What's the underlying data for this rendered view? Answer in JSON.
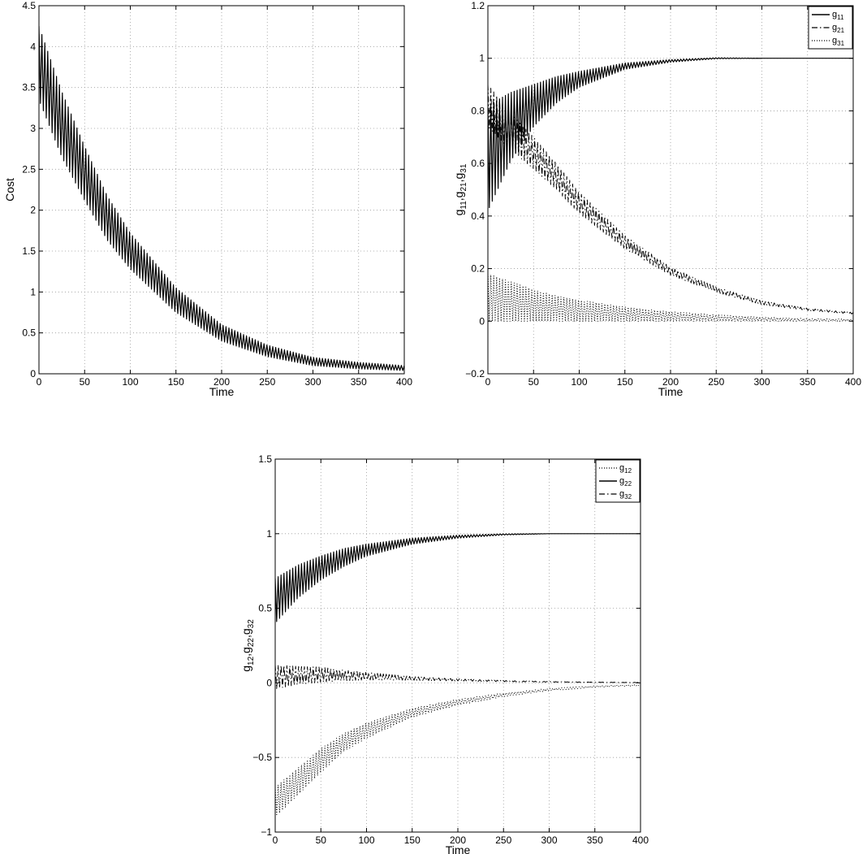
{
  "chart_data": [
    {
      "type": "line",
      "xlabel": "Time",
      "ylabel": "Cost",
      "xlim": [
        0,
        400
      ],
      "ylim": [
        0,
        4.5
      ],
      "xticks": [
        "0",
        "50",
        "100",
        "150",
        "200",
        "250",
        "300",
        "350",
        "400"
      ],
      "yticks": [
        "0",
        "0.5",
        "1",
        "1.5",
        "2",
        "2.5",
        "3",
        "3.5",
        "4",
        "4.5"
      ],
      "grid": true,
      "legend": null,
      "series": [
        {
          "style": "solid",
          "color": "#000000",
          "oscillating": true,
          "x": [
            0,
            25,
            50,
            75,
            100,
            150,
            200,
            250,
            300,
            350,
            400
          ],
          "center": [
            3.8,
            3.05,
            2.45,
            1.9,
            1.5,
            0.9,
            0.5,
            0.28,
            0.15,
            0.1,
            0.07
          ],
          "amplitude": [
            0.45,
            0.4,
            0.33,
            0.27,
            0.22,
            0.15,
            0.1,
            0.07,
            0.05,
            0.04,
            0.03
          ]
        }
      ]
    },
    {
      "type": "line",
      "xlabel": "Time",
      "ylabel_main": "g",
      "ylabel_subs": [
        "11",
        "21",
        "31"
      ],
      "xlim": [
        0,
        400
      ],
      "ylim": [
        -0.2,
        1.2
      ],
      "xticks": [
        "0",
        "50",
        "100",
        "150",
        "200",
        "250",
        "300",
        "350",
        "400"
      ],
      "yticks": [
        "−0.2",
        "0",
        "0.2",
        "0.4",
        "0.6",
        "0.8",
        "1",
        "1.2"
      ],
      "grid": true,
      "legend": "top-right",
      "series": [
        {
          "legend_main": "g",
          "legend_sub": "11",
          "style": "solid",
          "color": "#000000",
          "oscillating": true,
          "x": [
            0,
            25,
            50,
            75,
            100,
            150,
            200,
            250,
            300,
            350,
            400
          ],
          "center": [
            0.62,
            0.74,
            0.82,
            0.88,
            0.92,
            0.97,
            0.99,
            1.0,
            1.0,
            1.0,
            1.0
          ],
          "amplitude": [
            0.2,
            0.13,
            0.08,
            0.05,
            0.03,
            0.012,
            0.005,
            0.002,
            0.0,
            0.0,
            0.0
          ]
        },
        {
          "legend_main": "g",
          "legend_sub": "21",
          "style": "dashdot",
          "color": "#000000",
          "oscillating": true,
          "x": [
            0,
            25,
            50,
            75,
            100,
            150,
            200,
            250,
            300,
            350,
            400
          ],
          "center": [
            0.82,
            0.72,
            0.64,
            0.55,
            0.45,
            0.3,
            0.19,
            0.12,
            0.07,
            0.045,
            0.03
          ],
          "amplitude": [
            0.08,
            0.07,
            0.06,
            0.05,
            0.04,
            0.025,
            0.015,
            0.01,
            0.007,
            0.004,
            0.003
          ]
        },
        {
          "legend_main": "g",
          "legend_sub": "31",
          "style": "dotted",
          "color": "#000000",
          "oscillating": true,
          "x": [
            0,
            25,
            50,
            75,
            100,
            150,
            200,
            250,
            300,
            350,
            400
          ],
          "center": [
            0.09,
            0.075,
            0.06,
            0.048,
            0.04,
            0.027,
            0.018,
            0.012,
            0.008,
            0.005,
            0.004
          ],
          "amplitude": [
            0.09,
            0.075,
            0.06,
            0.048,
            0.04,
            0.027,
            0.018,
            0.012,
            0.008,
            0.005,
            0.004
          ]
        }
      ]
    },
    {
      "type": "line",
      "xlabel": "Time",
      "ylabel_main": "g",
      "ylabel_subs": [
        "12",
        "22",
        "32"
      ],
      "xlim": [
        0,
        400
      ],
      "ylim": [
        -1,
        1.5
      ],
      "xticks": [
        "0",
        "50",
        "100",
        "150",
        "200",
        "250",
        "300",
        "350",
        "400"
      ],
      "yticks": [
        "−1",
        "−0.5",
        "0",
        "0.5",
        "1",
        "1.5"
      ],
      "grid": true,
      "legend": "top-right",
      "series": [
        {
          "legend_main": "g",
          "legend_sub": "12",
          "style": "dotted",
          "color": "#000000",
          "oscillating": true,
          "x": [
            0,
            25,
            50,
            75,
            100,
            150,
            200,
            250,
            300,
            350,
            400
          ],
          "center": [
            -0.8,
            -0.66,
            -0.52,
            -0.4,
            -0.32,
            -0.2,
            -0.13,
            -0.08,
            -0.045,
            -0.025,
            -0.015
          ],
          "amplitude": [
            0.1,
            0.09,
            0.08,
            0.06,
            0.05,
            0.03,
            0.02,
            0.012,
            0.008,
            0.005,
            0.003
          ]
        },
        {
          "legend_main": "g",
          "legend_sub": "22",
          "style": "solid",
          "color": "#000000",
          "oscillating": true,
          "x": [
            0,
            25,
            50,
            75,
            100,
            150,
            200,
            250,
            300,
            350,
            400
          ],
          "center": [
            0.55,
            0.68,
            0.77,
            0.84,
            0.89,
            0.95,
            0.98,
            0.995,
            1.0,
            1.0,
            1.0
          ],
          "amplitude": [
            0.15,
            0.11,
            0.08,
            0.06,
            0.04,
            0.02,
            0.01,
            0.004,
            0.0,
            0.0,
            0.0
          ]
        },
        {
          "legend_main": "g",
          "legend_sub": "32",
          "style": "dashdot",
          "color": "#000000",
          "oscillating": true,
          "x": [
            0,
            25,
            50,
            75,
            100,
            150,
            200,
            250,
            300,
            350,
            400
          ],
          "center": [
            0.04,
            0.05,
            0.055,
            0.05,
            0.045,
            0.03,
            0.02,
            0.012,
            0.007,
            0.004,
            0.002
          ],
          "amplitude": [
            0.08,
            0.06,
            0.05,
            0.035,
            0.025,
            0.012,
            0.007,
            0.004,
            0.002,
            0.001,
            0.001
          ]
        }
      ]
    }
  ]
}
